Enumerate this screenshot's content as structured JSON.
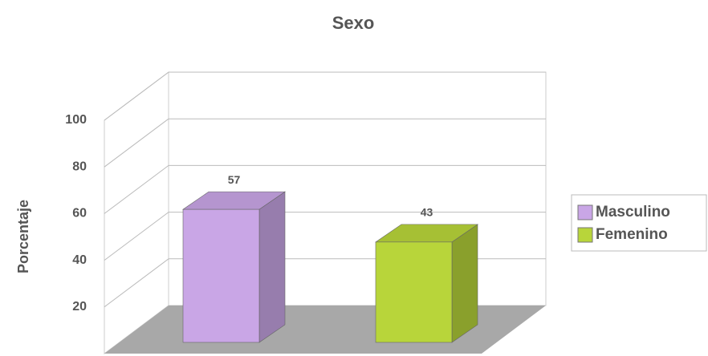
{
  "chart_data": {
    "type": "bar3d",
    "title": "Sexo",
    "ylabel": "Porcentaje",
    "series": [
      {
        "name": "Masculino",
        "color": "#c9a6e6",
        "values": [
          57
        ]
      },
      {
        "name": "Femenino",
        "color": "#b8d53a",
        "values": [
          43
        ]
      }
    ],
    "ylim": [
      0,
      100
    ],
    "yticks": [
      20,
      40,
      60,
      80,
      100
    ],
    "grid": true,
    "legend": "right"
  }
}
